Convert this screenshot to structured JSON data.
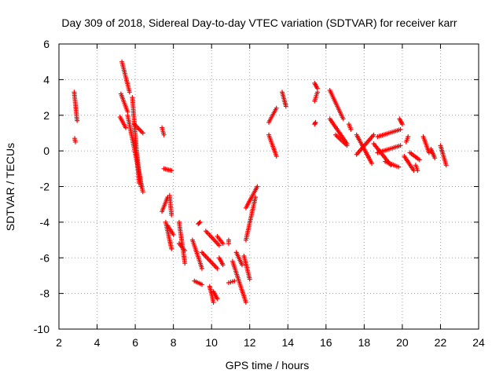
{
  "chart_data": {
    "type": "scatter",
    "title": "Day 309 of 2018, Sidereal Day-to-day VTEC variation (SDTVAR) for receiver karr",
    "xlabel": "GPS time / hours",
    "ylabel": "SDTVAR / TECUs",
    "xlim": [
      2,
      24
    ],
    "ylim": [
      -10,
      6
    ],
    "xticks": [
      "2",
      "4",
      "6",
      "8",
      "10",
      "12",
      "14",
      "16",
      "18",
      "20",
      "22",
      "24"
    ],
    "yticks": [
      "-10",
      "-8",
      "-6",
      "-4",
      "-2",
      "0",
      "2",
      "4",
      "6"
    ],
    "grid": true,
    "marker": "+",
    "color": "#ff0000",
    "series": [
      {
        "name": "SDTVAR",
        "segments": [
          [
            2.8,
            3.3,
            2.95,
            1.7
          ],
          [
            2.83,
            0.7,
            2.86,
            0.5
          ],
          [
            5.3,
            5.0,
            5.7,
            3.3
          ],
          [
            5.25,
            3.2,
            5.6,
            2.2
          ],
          [
            5.2,
            1.9,
            5.5,
            1.3
          ],
          [
            5.6,
            2.0,
            6.4,
            -2.3
          ],
          [
            5.85,
            3.0,
            6.2,
            -1.8
          ],
          [
            5.95,
            1.5,
            6.4,
            1.0
          ],
          [
            6.0,
            0.5,
            6.3,
            -2.0
          ],
          [
            7.4,
            1.3,
            7.5,
            0.9
          ],
          [
            7.5,
            -1.0,
            7.9,
            -1.1
          ],
          [
            7.4,
            -3.4,
            7.7,
            -2.6
          ],
          [
            7.8,
            -2.5,
            7.9,
            -3.6
          ],
          [
            7.6,
            -4.0,
            7.9,
            -5.5
          ],
          [
            7.7,
            -4.2,
            8.0,
            -4.7
          ],
          [
            8.3,
            -4.0,
            8.6,
            -6.3
          ],
          [
            8.3,
            -5.2,
            8.6,
            -5.6
          ],
          [
            9.0,
            -5.0,
            9.5,
            -6.6
          ],
          [
            9.3,
            -4.1,
            9.4,
            -4.0
          ],
          [
            9.1,
            -7.3,
            9.5,
            -7.5
          ],
          [
            9.5,
            -5.7,
            10.3,
            -6.6
          ],
          [
            9.7,
            -4.5,
            10.4,
            -5.3
          ],
          [
            9.9,
            -7.6,
            10.1,
            -8.5
          ],
          [
            10.1,
            -7.9,
            10.3,
            -8.3
          ],
          [
            10.3,
            -4.8,
            10.6,
            -5.2
          ],
          [
            10.4,
            -6.0,
            10.6,
            -6.4
          ],
          [
            10.9,
            -5.2,
            10.9,
            -5.0
          ],
          [
            10.9,
            -7.4,
            11.2,
            -7.3
          ],
          [
            11.1,
            -6.2,
            11.8,
            -8.5
          ],
          [
            11.3,
            -5.7,
            11.6,
            -6.4
          ],
          [
            11.7,
            -5.9,
            12.0,
            -7.2
          ],
          [
            11.8,
            -3.2,
            12.4,
            -2.0
          ],
          [
            11.8,
            -5.0,
            12.3,
            -2.6
          ],
          [
            13.0,
            0.9,
            13.4,
            -0.3
          ],
          [
            13.0,
            1.6,
            13.4,
            2.4
          ],
          [
            13.7,
            3.3,
            13.9,
            2.5
          ],
          [
            15.4,
            3.8,
            15.55,
            3.5
          ],
          [
            15.4,
            2.8,
            15.55,
            3.3
          ],
          [
            15.4,
            1.5,
            15.45,
            1.6
          ],
          [
            16.2,
            3.4,
            16.9,
            1.8
          ],
          [
            16.2,
            1.8,
            17.1,
            0.4
          ],
          [
            16.5,
            0.9,
            17.1,
            0.3
          ],
          [
            17.2,
            1.5,
            17.3,
            1.2
          ],
          [
            17.6,
            0.9,
            18.4,
            -0.7
          ],
          [
            17.6,
            -0.2,
            18.5,
            0.9
          ],
          [
            18.5,
            0.4,
            19.4,
            -0.8
          ],
          [
            18.7,
            0.8,
            19.9,
            1.2
          ],
          [
            18.7,
            -0.1,
            19.9,
            0.3
          ],
          [
            19.1,
            -0.6,
            19.8,
            -0.9
          ],
          [
            19.85,
            1.8,
            20.0,
            1.5
          ],
          [
            20.1,
            -0.3,
            20.6,
            -1.1
          ],
          [
            20.2,
            0.5,
            20.3,
            0.8
          ],
          [
            20.4,
            -0.1,
            20.9,
            -0.5
          ],
          [
            20.7,
            -0.8,
            20.8,
            -1.1
          ],
          [
            21.1,
            0.8,
            21.4,
            -0.1
          ],
          [
            21.5,
            0.1,
            21.7,
            -0.4
          ],
          [
            22.0,
            0.3,
            22.3,
            -0.8
          ]
        ]
      }
    ]
  }
}
